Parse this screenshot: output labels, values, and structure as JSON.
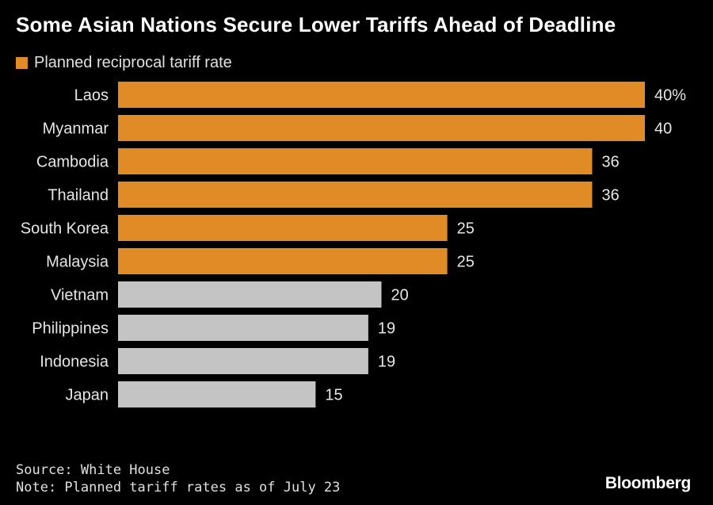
{
  "title": "Some Asian Nations Secure Lower Tariffs Ahead of Deadline",
  "legend": {
    "label": "Planned reciprocal tariff rate",
    "color": "#E08B25"
  },
  "colors": {
    "highlight": "#E08B25",
    "muted": "#C4C4C4",
    "background": "#000000",
    "text": "#E6E6E6"
  },
  "chart_data": {
    "type": "bar",
    "orientation": "horizontal",
    "title": "Some Asian Nations Secure Lower Tariffs Ahead of Deadline",
    "series_name": "Planned reciprocal tariff rate",
    "unit": "%",
    "categories": [
      "Laos",
      "Myanmar",
      "Cambodia",
      "Thailand",
      "South Korea",
      "Malaysia",
      "Vietnam",
      "Philippines",
      "Indonesia",
      "Japan"
    ],
    "values": [
      40,
      40,
      36,
      36,
      25,
      25,
      20,
      19,
      19,
      15
    ],
    "value_labels": [
      "40%",
      "40",
      "36",
      "36",
      "25",
      "25",
      "20",
      "19",
      "19",
      "15"
    ],
    "highlighted": [
      true,
      true,
      true,
      true,
      true,
      true,
      false,
      false,
      false,
      false
    ],
    "xlim": [
      0,
      40
    ],
    "grid": false,
    "legend_position": "top-left"
  },
  "footer": {
    "source": "Source: White House",
    "note": "Note: Planned tariff rates as of July 23"
  },
  "brand": "Bloomberg"
}
